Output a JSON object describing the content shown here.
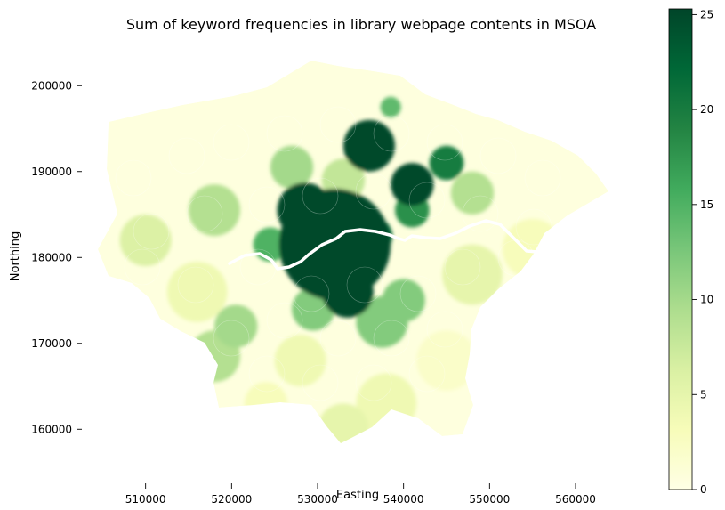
{
  "chart_data": {
    "type": "heatmap",
    "title": "Sum of keyword frequencies in library webpage contents in MSOA",
    "xlabel": "Easting",
    "ylabel": "Northing",
    "xlim": [
      503000,
      566000
    ],
    "ylim": [
      153500,
      205000
    ],
    "x_ticks": [
      510000,
      520000,
      530000,
      540000,
      550000,
      560000
    ],
    "x_tick_labels": [
      "510000",
      "520000",
      "530000",
      "540000",
      "550000",
      "560000"
    ],
    "y_ticks": [
      160000,
      170000,
      180000,
      190000,
      200000
    ],
    "y_tick_labels": [
      "160000",
      "170000",
      "180000",
      "190000",
      "200000"
    ],
    "colorbar": {
      "colormap": "YlGn",
      "range": [
        0,
        25.3
      ],
      "ticks": [
        0,
        5,
        10,
        15,
        20,
        25
      ],
      "tick_labels": [
        "0",
        "5",
        "10",
        "15",
        "20",
        "25"
      ],
      "colors": [
        "#ffffe5",
        "#f7fcb9",
        "#d9f0a3",
        "#addd8e",
        "#78c679",
        "#41ab5d",
        "#238443",
        "#006837",
        "#004529"
      ]
    },
    "regions": [
      {
        "x": 532000,
        "y": 181500,
        "r": 6500,
        "value": 25
      },
      {
        "x": 528500,
        "y": 185500,
        "r": 3200,
        "value": 25
      },
      {
        "x": 533500,
        "y": 176000,
        "r": 3000,
        "value": 25
      },
      {
        "x": 536000,
        "y": 193000,
        "r": 3000,
        "value": 25
      },
      {
        "x": 541000,
        "y": 188500,
        "r": 2500,
        "value": 25
      },
      {
        "x": 536500,
        "y": 182500,
        "r": 2200,
        "value": 22
      },
      {
        "x": 545000,
        "y": 191000,
        "r": 2000,
        "value": 20
      },
      {
        "x": 541000,
        "y": 185500,
        "r": 2000,
        "value": 18
      },
      {
        "x": 524500,
        "y": 181500,
        "r": 2000,
        "value": 15
      },
      {
        "x": 538500,
        "y": 197500,
        "r": 1200,
        "value": 14
      },
      {
        "x": 537500,
        "y": 172500,
        "r": 3000,
        "value": 12
      },
      {
        "x": 540000,
        "y": 175000,
        "r": 2500,
        "value": 12
      },
      {
        "x": 529500,
        "y": 174000,
        "r": 2500,
        "value": 12
      },
      {
        "x": 520500,
        "y": 172000,
        "r": 2500,
        "value": 10
      },
      {
        "x": 518000,
        "y": 168500,
        "r": 3000,
        "value": 9
      },
      {
        "x": 518000,
        "y": 185500,
        "r": 3000,
        "value": 9
      },
      {
        "x": 548000,
        "y": 187500,
        "r": 2500,
        "value": 9
      },
      {
        "x": 527000,
        "y": 190500,
        "r": 2500,
        "value": 10
      },
      {
        "x": 533000,
        "y": 189000,
        "r": 2500,
        "value": 8
      },
      {
        "x": 510000,
        "y": 182000,
        "r": 3000,
        "value": 6
      },
      {
        "x": 533000,
        "y": 160000,
        "r": 3000,
        "value": 5
      },
      {
        "x": 528000,
        "y": 168000,
        "r": 3000,
        "value": 4
      },
      {
        "x": 516000,
        "y": 176000,
        "r": 3500,
        "value": 4
      },
      {
        "x": 548000,
        "y": 178000,
        "r": 3500,
        "value": 5
      },
      {
        "x": 538000,
        "y": 163000,
        "r": 3500,
        "value": 4
      },
      {
        "x": 555000,
        "y": 181000,
        "r": 3500,
        "value": 3
      },
      {
        "x": 524000,
        "y": 163000,
        "r": 2500,
        "value": 3
      },
      {
        "x": 545000,
        "y": 168000,
        "r": 3500,
        "value": 2
      }
    ]
  }
}
